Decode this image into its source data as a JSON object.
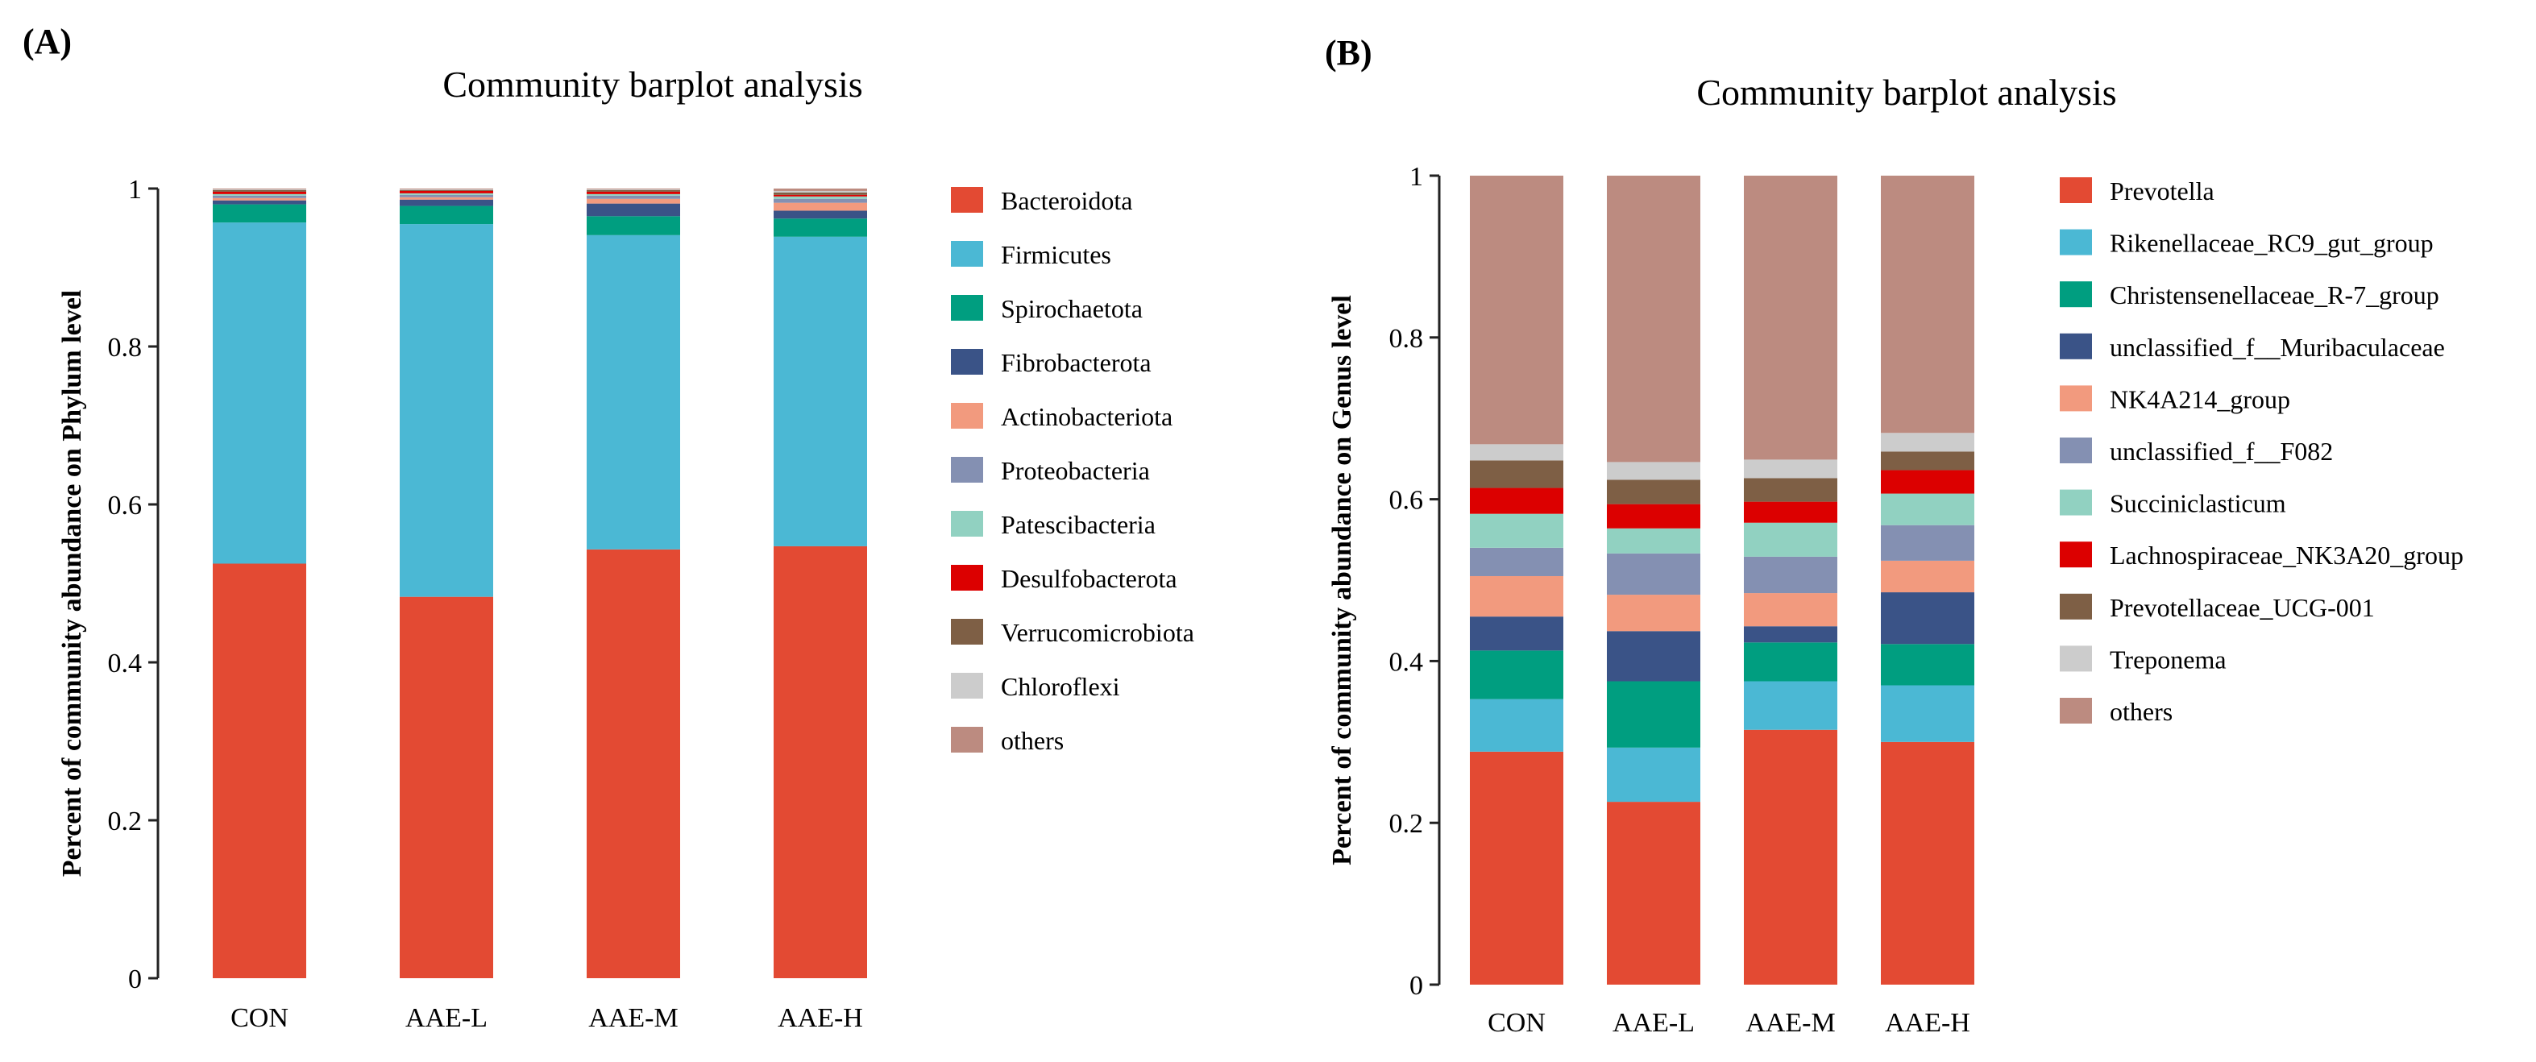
{
  "colors": [
    "#e34a33",
    "#4bb8d4",
    "#009e80",
    "#3a5387",
    "#f29a7e",
    "#8490b2",
    "#91d1c1",
    "#dc0000",
    "#7e5f45",
    "#cccccc",
    "#bc8b80"
  ],
  "chart_data": [
    {
      "type": "bar",
      "stacked": true,
      "panel_label": "(A)",
      "title": "Community barplot analysis",
      "xlabel": "",
      "ylabel": "Percent of community abundance on Phylum level",
      "ylim": [
        0,
        1
      ],
      "yticks": [
        "0",
        "0.2",
        "0.4",
        "0.6",
        "0.8",
        "1"
      ],
      "categories": [
        "CON",
        "AAE-L",
        "AAE-M",
        "AAE-H"
      ],
      "legend_position": "right",
      "series": [
        {
          "name": "Bacteroidota",
          "values": [
            0.525,
            0.483,
            0.543,
            0.547
          ]
        },
        {
          "name": "Firmicutes",
          "values": [
            0.432,
            0.472,
            0.398,
            0.392
          ]
        },
        {
          "name": "Spirochaetota",
          "values": [
            0.023,
            0.023,
            0.024,
            0.023
          ]
        },
        {
          "name": "Fibrobacterota",
          "values": [
            0.005,
            0.008,
            0.016,
            0.01
          ]
        },
        {
          "name": "Actinobacteriota",
          "values": [
            0.003,
            0.003,
            0.006,
            0.01
          ]
        },
        {
          "name": "Proteobacteria",
          "values": [
            0.003,
            0.003,
            0.004,
            0.005
          ]
        },
        {
          "name": "Patescibacteria",
          "values": [
            0.002,
            0.002,
            0.002,
            0.003
          ]
        },
        {
          "name": "Desulfobacterota",
          "values": [
            0.003,
            0.003,
            0.003,
            0.002
          ]
        },
        {
          "name": "Verrucomicrobiota",
          "values": [
            0.002,
            0.001,
            0.002,
            0.003
          ]
        },
        {
          "name": "Chloroflexi",
          "values": [
            0.001,
            0.001,
            0.001,
            0.002
          ]
        },
        {
          "name": "others",
          "values": [
            0.001,
            0.001,
            0.001,
            0.003
          ]
        }
      ]
    },
    {
      "type": "bar",
      "stacked": true,
      "panel_label": "(B)",
      "title": "Community barplot analysis",
      "xlabel": "",
      "ylabel": "Percent of community abundance on Genus level",
      "ylim": [
        0,
        1
      ],
      "yticks": [
        "0",
        "0.2",
        "0.4",
        "0.6",
        "0.8",
        "1"
      ],
      "categories": [
        "CON",
        "AAE-L",
        "AAE-M",
        "AAE-H"
      ],
      "legend_position": "right",
      "series": [
        {
          "name": "Prevotella",
          "values": [
            0.288,
            0.226,
            0.315,
            0.3
          ]
        },
        {
          "name": "Rikenellaceae_RC9_gut_group",
          "values": [
            0.065,
            0.067,
            0.06,
            0.07
          ]
        },
        {
          "name": "Christensenellaceae_R-7_group",
          "values": [
            0.06,
            0.082,
            0.048,
            0.051
          ]
        },
        {
          "name": "unclassified_f__Muribaculaceae",
          "values": [
            0.042,
            0.062,
            0.02,
            0.064
          ]
        },
        {
          "name": "NK4A214_group",
          "values": [
            0.05,
            0.045,
            0.041,
            0.039
          ]
        },
        {
          "name": "unclassified_f__F082",
          "values": [
            0.035,
            0.051,
            0.045,
            0.044
          ]
        },
        {
          "name": "Succiniclasticum",
          "values": [
            0.042,
            0.031,
            0.042,
            0.039
          ]
        },
        {
          "name": "Lachnospiraceae_NK3A20_group",
          "values": [
            0.032,
            0.03,
            0.026,
            0.029
          ]
        },
        {
          "name": "Prevotellaceae_UCG-001",
          "values": [
            0.034,
            0.03,
            0.029,
            0.023
          ]
        },
        {
          "name": "Treponema",
          "values": [
            0.02,
            0.022,
            0.023,
            0.023
          ]
        },
        {
          "name": "others",
          "values": [
            0.332,
            0.354,
            0.351,
            0.318
          ]
        }
      ]
    }
  ]
}
